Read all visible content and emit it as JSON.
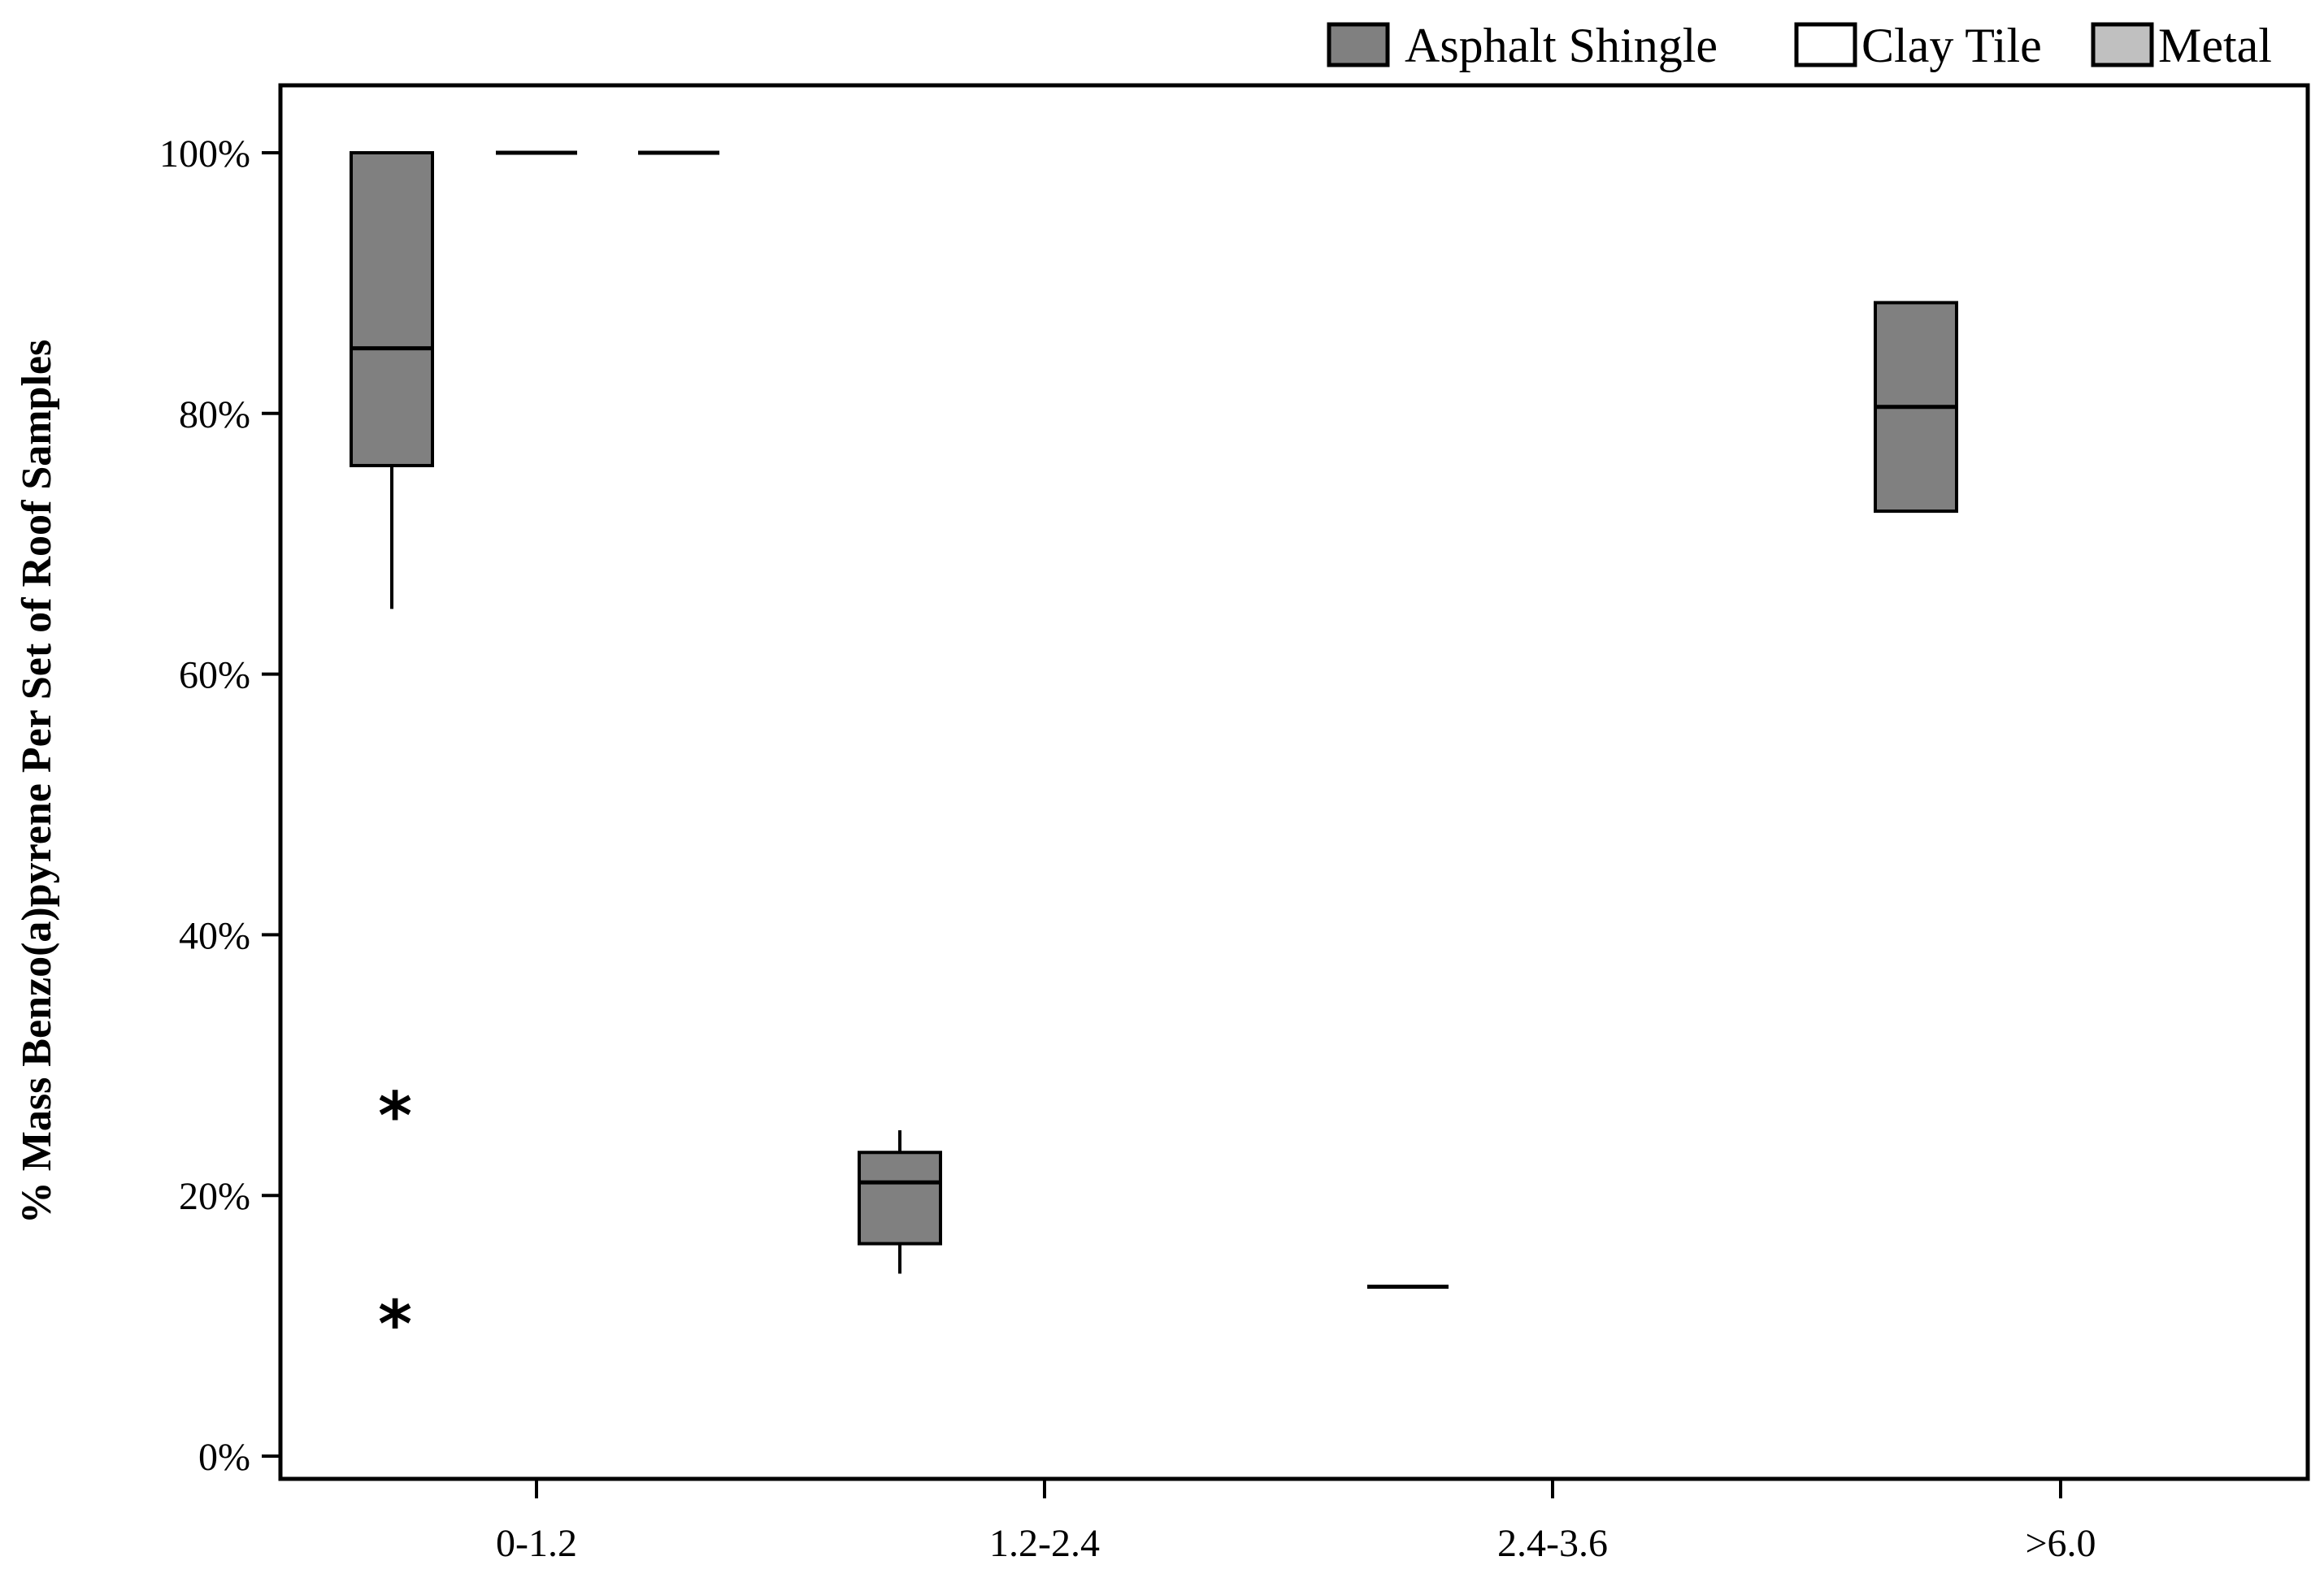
{
  "chart_data": {
    "type": "boxplot",
    "title": "",
    "xlabel": "",
    "ylabel": "% Mass Benzo(a)pyrene Per Set of Roof Samples",
    "ylim": [
      0,
      100
    ],
    "yticks": [
      "0%",
      "20%",
      "40%",
      "60%",
      "80%",
      "100%"
    ],
    "ytick_values": [
      0,
      20,
      40,
      60,
      80,
      100
    ],
    "categories": [
      "0-1.2",
      "1.2-2.4",
      "2.4-3.6",
      ">6.0"
    ],
    "legend": {
      "placement": "top-right"
    },
    "grid": false,
    "series": [
      {
        "name": "Asphalt Shingle",
        "color": "#808080",
        "boxes": [
          {
            "category": "0-1.2",
            "whisker_low": 65,
            "q1": 76,
            "median": 85,
            "q3": 100,
            "whisker_high": 100,
            "outliers": [
              27,
              11
            ]
          },
          {
            "category": "1.2-2.4",
            "whisker_low": 14,
            "q1": 16.3,
            "median": 21,
            "q3": 23.3,
            "whisker_high": 25,
            "outliers": []
          },
          {
            "category": "2.4-3.6",
            "whisker_low": 13,
            "q1": 13,
            "median": 13,
            "q3": 13,
            "whisker_high": 13,
            "outliers": []
          },
          {
            "category": ">6.0",
            "whisker_low": 72.5,
            "q1": 72.5,
            "median": 80.5,
            "q3": 88.5,
            "whisker_high": 88.5,
            "outliers": []
          }
        ]
      },
      {
        "name": "Clay Tile",
        "color": "#ffffff",
        "boxes": [
          {
            "category": "0-1.2",
            "whisker_low": 100,
            "q1": 100,
            "median": 100,
            "q3": 100,
            "whisker_high": 100,
            "outliers": []
          }
        ]
      },
      {
        "name": "Metal",
        "color": "#c0c0c0",
        "boxes": [
          {
            "category": "0-1.2",
            "whisker_low": 100,
            "q1": 100,
            "median": 100,
            "q3": 100,
            "whisker_high": 100,
            "outliers": []
          }
        ]
      }
    ]
  }
}
